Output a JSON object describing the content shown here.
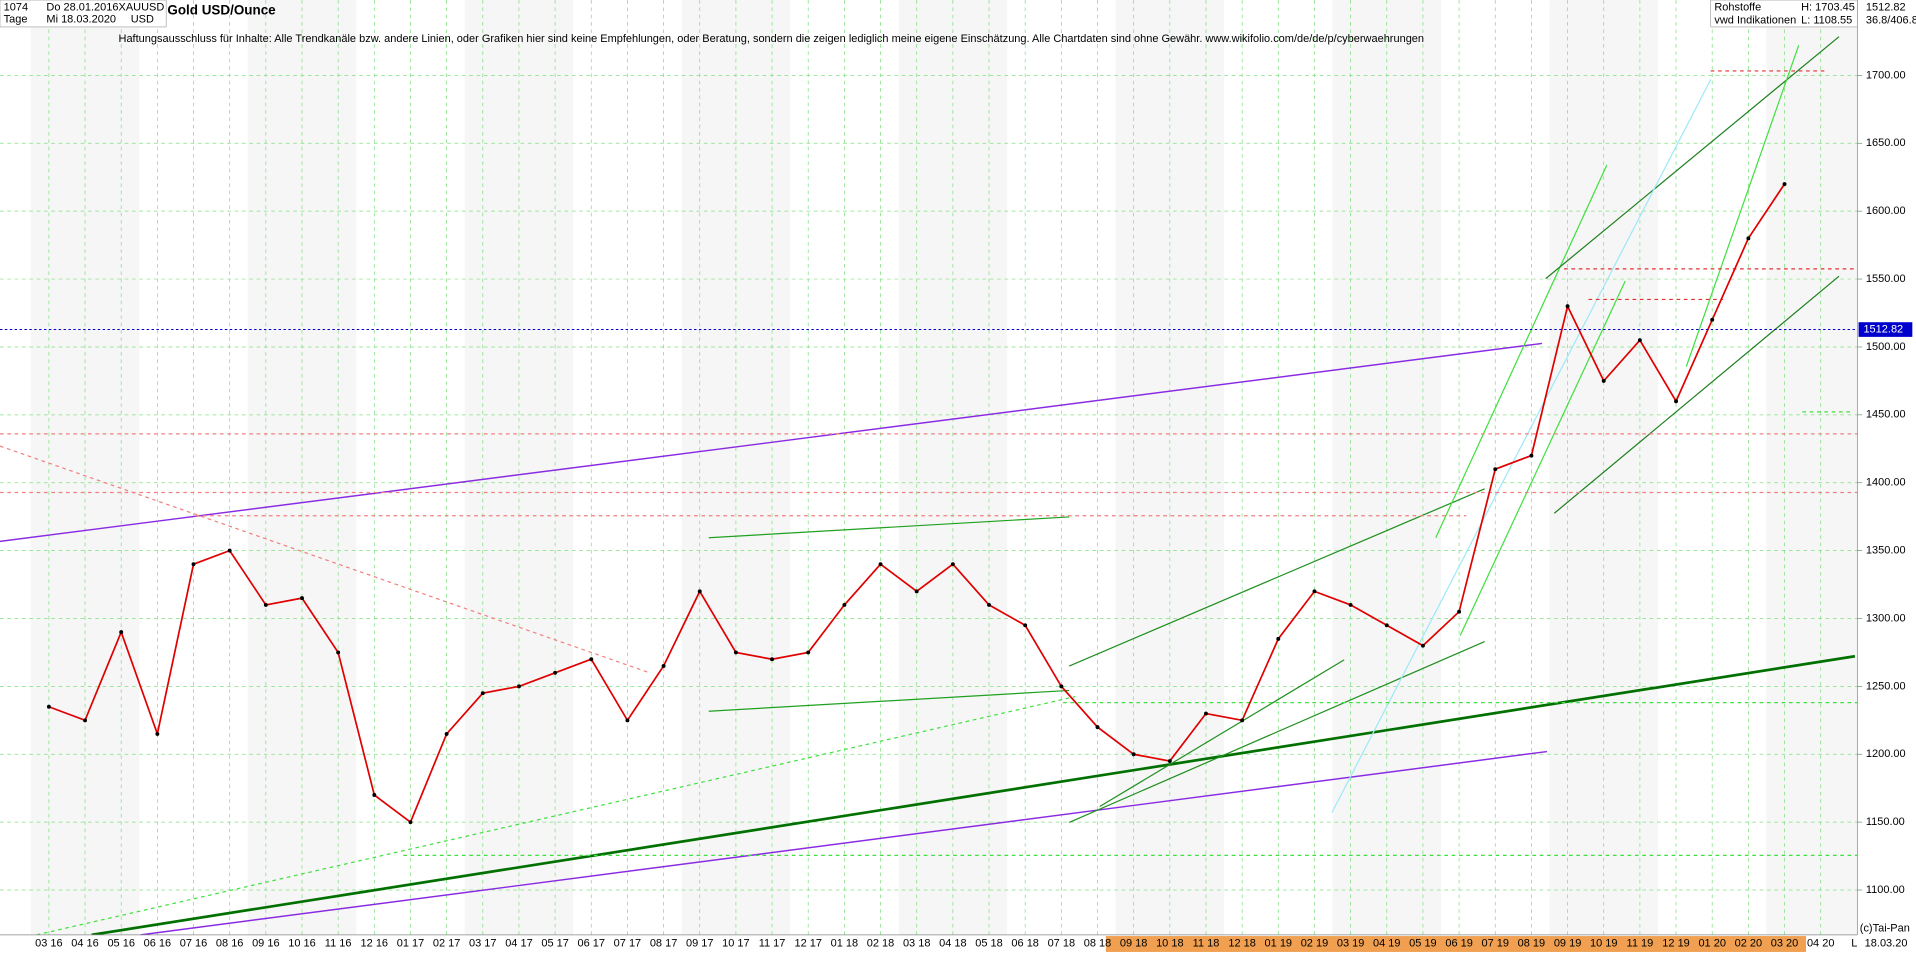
{
  "chart_data": {
    "type": "line",
    "title": "Gold USD/Ounce",
    "subtitle": "Haftungsausschluss für Inhalte: Alle Trendkanäle bzw. andere Linien, oder Grafiken hier sind keine Empfehlungen, oder Beratung, sondern die zeigen lediglich meine eigene Einschätzung. Alle Chartdaten sind ohne Gewähr.  www.wikifolio.com/de/de/p/cyberwaehrungen",
    "header": {
      "count": "1074",
      "from": "Do 28.01.2016",
      "symbol": "XAUUSD",
      "period": "Tage",
      "to": "Mi 18.03.2020",
      "currency": "USD",
      "group": "Rohstoffe",
      "high": "H: 1703.45",
      "source": "vwd Indikationen",
      "low": "L: 1108.55",
      "axis_top": "1512.82",
      "axis_range": "36.8/406.8",
      "copyright": "(c)Tai-Pan",
      "date": "18.03.20",
      "scale": "L"
    },
    "categories": [
      "03 16",
      "04 16",
      "05 16",
      "06 16",
      "07 16",
      "08 16",
      "09 16",
      "10 16",
      "11 16",
      "12 16",
      "01 17",
      "02 17",
      "03 17",
      "04 17",
      "05 17",
      "06 17",
      "07 17",
      "08 17",
      "09 17",
      "10 17",
      "11 17",
      "12 17",
      "01 18",
      "02 18",
      "03 18",
      "04 18",
      "05 18",
      "06 18",
      "07 18",
      "08 18",
      "09 18",
      "10 18",
      "11 18",
      "12 18",
      "01 19",
      "02 19",
      "03 19",
      "04 19",
      "05 19",
      "06 19",
      "07 19",
      "08 19",
      "09 19",
      "10 19",
      "11 19",
      "12 19",
      "01 20",
      "02 20",
      "03 20",
      "04 20"
    ],
    "values": [
      1235,
      1225,
      1290,
      1215,
      1340,
      1350,
      1310,
      1315,
      1275,
      1170,
      1150,
      1215,
      1245,
      1250,
      1260,
      1270,
      1225,
      1265,
      1320,
      1275,
      1270,
      1275,
      1310,
      1340,
      1320,
      1340,
      1310,
      1295,
      1250,
      1220,
      1200,
      1195,
      1230,
      1225,
      1285,
      1320,
      1310,
      1295,
      1280,
      1305,
      1410,
      1420,
      1530,
      1475,
      1505,
      1460,
      1520,
      1580,
      1620,
      null
    ],
    "color": "#e00000",
    "last_price": 1512.82,
    "last_price_color": "#0000cc",
    "ylim": [
      1067,
      1751
    ],
    "yticks": [
      {
        "value": 1100,
        "label": "1100.00"
      },
      {
        "value": 1150,
        "label": "1150.00"
      },
      {
        "value": 1200,
        "label": "1200.00"
      },
      {
        "value": 1250,
        "label": "1250.00"
      },
      {
        "value": 1300,
        "label": "1300.00"
      },
      {
        "value": 1350,
        "label": "1350.00"
      },
      {
        "value": 1400,
        "label": "1400.00"
      },
      {
        "value": 1450,
        "label": "1450.00"
      },
      {
        "value": 1500,
        "label": "1500.00"
      },
      {
        "value": 1550,
        "label": "1550.00"
      },
      {
        "value": 1600,
        "label": "1600.00"
      },
      {
        "value": 1650,
        "label": "1650.00"
      },
      {
        "value": 1700,
        "label": "1700.00"
      }
    ],
    "grid": true
  }
}
